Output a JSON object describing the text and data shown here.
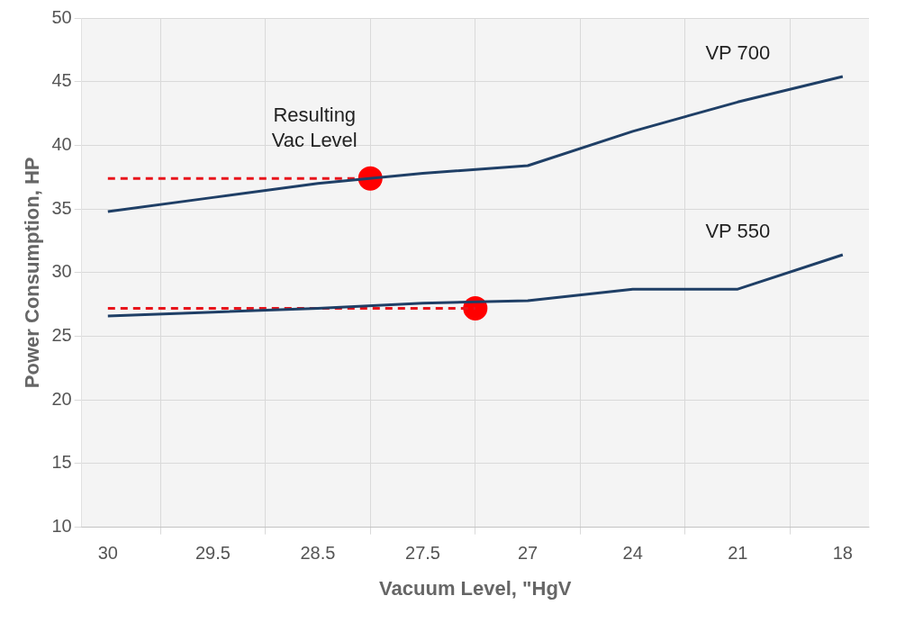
{
  "chart_data": {
    "type": "line",
    "xlabel": "Vacuum Level, \"HgV",
    "ylabel": "Power Consumption, HP",
    "categories": [
      "30",
      null,
      "29.5",
      null,
      "28.5",
      null,
      "27.5",
      null,
      "27",
      null,
      "24",
      null,
      "21",
      null,
      "18"
    ],
    "series": [
      {
        "name": "VP 700",
        "color": "#1f3f66",
        "values": [
          34.8,
          null,
          35.9,
          null,
          37.0,
          null,
          37.8,
          null,
          38.4,
          null,
          41.1,
          null,
          43.4,
          null,
          45.4
        ]
      },
      {
        "name": "VP 550",
        "color": "#1f3f66",
        "values": [
          26.6,
          null,
          26.9,
          null,
          27.2,
          null,
          27.6,
          null,
          27.8,
          null,
          28.7,
          null,
          28.7,
          null,
          31.4
        ]
      },
      {
        "type": "line",
        "line_style": "dashed",
        "color": "#e8141b",
        "values": [
          37.4,
          null,
          null,
          null,
          null,
          37.4,
          null,
          null,
          null,
          null,
          null,
          null,
          null,
          null,
          null
        ]
      },
      {
        "type": "line",
        "line_style": "dashed",
        "color": "#e8141b",
        "values": [
          27.2,
          null,
          null,
          null,
          null,
          null,
          null,
          27.2,
          null,
          null,
          null,
          null,
          null,
          null,
          null
        ]
      },
      {
        "type": "scatter",
        "marker": "circle",
        "color": "#ff0000",
        "values": [
          null,
          null,
          null,
          null,
          null,
          37.4,
          null,
          27.2,
          null,
          null,
          null,
          null,
          null,
          null,
          null
        ]
      }
    ],
    "annotations": [
      "Resulting Vac Level"
    ],
    "ylim": [
      10,
      50
    ],
    "yticks": [
      10,
      15,
      20,
      25,
      30,
      35,
      40,
      45,
      50
    ],
    "grid": true,
    "legend": false
  }
}
